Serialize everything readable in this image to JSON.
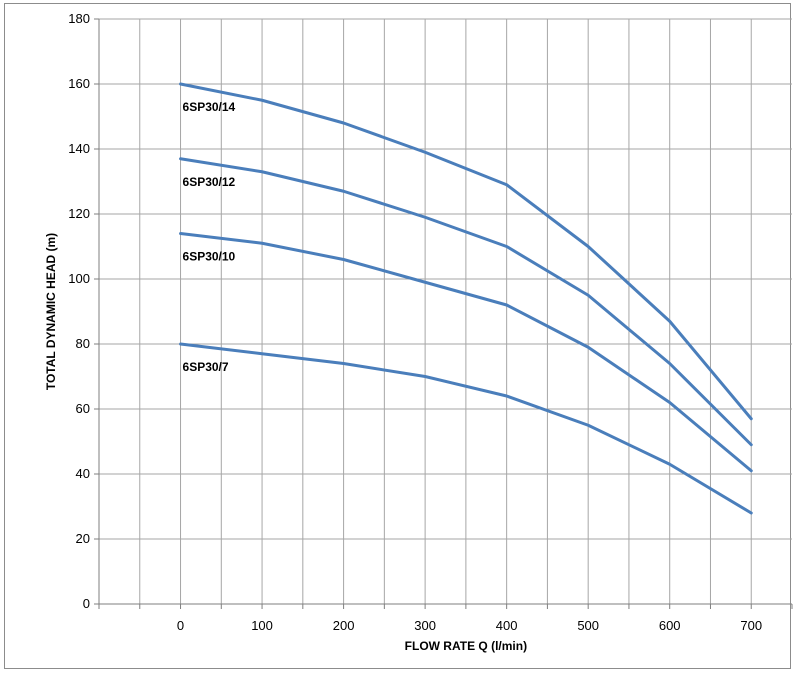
{
  "chart_data": {
    "type": "line",
    "xlabel": "FLOW RATE Q (l/min)",
    "ylabel": "TOTAL DYNAMIC HEAD (m)",
    "xlim": [
      -100,
      750
    ],
    "ylim": [
      0,
      180
    ],
    "x_ticks": [
      0,
      100,
      200,
      300,
      400,
      500,
      600,
      700
    ],
    "y_ticks": [
      0,
      20,
      40,
      60,
      80,
      100,
      120,
      140,
      160,
      180
    ],
    "grid": true,
    "legend": "none",
    "line_color": "#4a7ebb",
    "x": [
      0,
      100,
      200,
      300,
      400,
      500,
      600,
      700
    ],
    "series": [
      {
        "name": "6SP30/14",
        "values": [
          160,
          155,
          148,
          139,
          129,
          110,
          87,
          57
        ]
      },
      {
        "name": "6SP30/12",
        "values": [
          137,
          133,
          127,
          119,
          110,
          95,
          74,
          49
        ]
      },
      {
        "name": "6SP30/10",
        "values": [
          114,
          111,
          106,
          99,
          92,
          79,
          62,
          41
        ]
      },
      {
        "name": "6SP30/7",
        "values": [
          80,
          77,
          74,
          70,
          64,
          55,
          43,
          28
        ]
      }
    ]
  }
}
